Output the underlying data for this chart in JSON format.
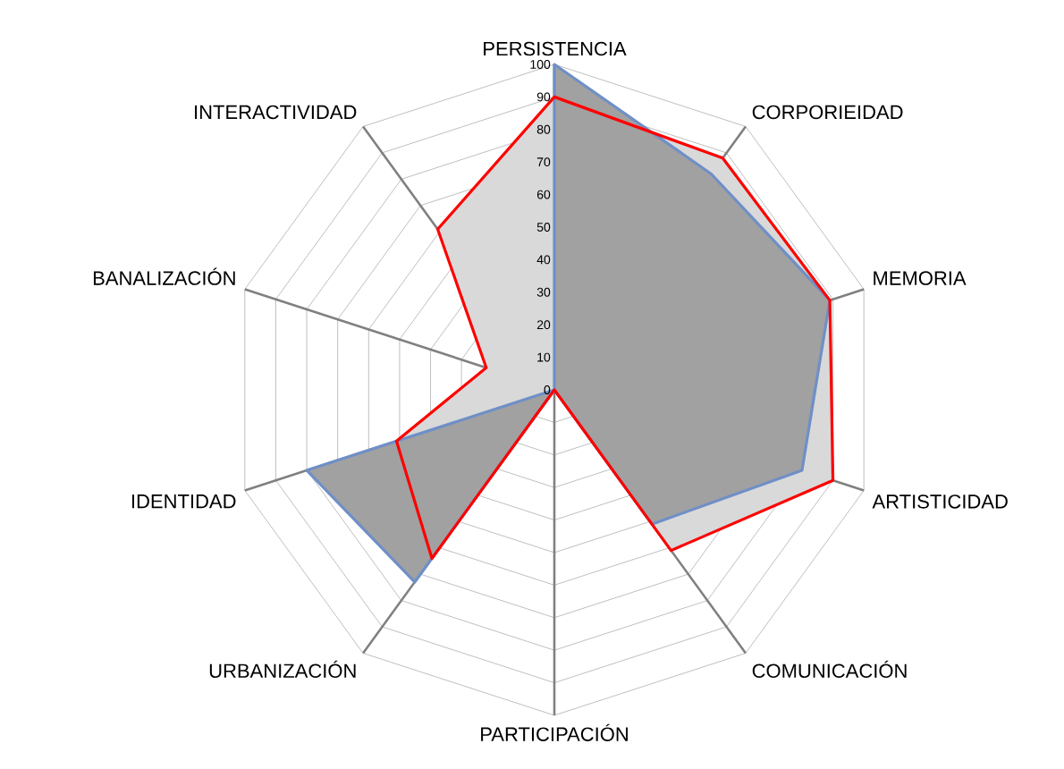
{
  "chart_data": {
    "type": "radar",
    "categories": [
      "PERSISTENCIA",
      "CORPORIEIDAD",
      "MEMORIA",
      "ARTISTICIDAD",
      "COMUNICACIÓN",
      "PARTICIPACIÓN",
      "URBANIZACIÓN",
      "IDENTIDAD",
      "BANALIZACIÓN",
      "INTERACTIVIDAD"
    ],
    "ylim": [
      0,
      100
    ],
    "yticks": [
      0,
      10,
      20,
      30,
      40,
      50,
      60,
      70,
      80,
      90,
      100
    ],
    "grid": true,
    "marker": "none",
    "line_style": "solid",
    "series": [
      {
        "color": "#6f8fc7",
        "values": [
          100,
          82,
          89,
          80,
          51,
          0,
          73,
          80,
          0,
          0
        ]
      },
      {
        "color": "#ff0000",
        "values": [
          90,
          88,
          89,
          90,
          61,
          0,
          64,
          51,
          22,
          61
        ]
      }
    ]
  }
}
